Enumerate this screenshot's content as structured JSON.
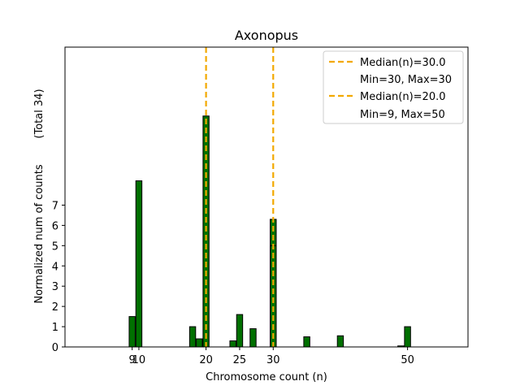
{
  "chart_data": {
    "type": "bar",
    "title": "Axonopus",
    "xlabel": "Chromosome count (n)",
    "ylabel": "Normalized num of counts",
    "ylabel_total": "(Total 34)",
    "xlim": [
      -1,
      59
    ],
    "ylim": [
      0,
      14.8
    ],
    "xticks": [
      {
        "value": 9,
        "label": "9"
      },
      {
        "value": 10,
        "label": "10"
      },
      {
        "value": 20,
        "label": "20"
      },
      {
        "value": 25,
        "label": "25"
      },
      {
        "value": 30,
        "label": "30"
      },
      {
        "value": 50,
        "label": "50"
      }
    ],
    "yticks": [
      0,
      1,
      2,
      3,
      4,
      5,
      6,
      7
    ],
    "bar_width": 0.9,
    "bar_color": "#007000",
    "bars": [
      {
        "x": 9,
        "value": 1.5
      },
      {
        "x": 10,
        "value": 8.2
      },
      {
        "x": 18,
        "value": 1.0
      },
      {
        "x": 19,
        "value": 0.4
      },
      {
        "x": 20,
        "value": 11.4
      },
      {
        "x": 24,
        "value": 0.3
      },
      {
        "x": 25,
        "value": 1.6
      },
      {
        "x": 27,
        "value": 0.9
      },
      {
        "x": 30,
        "value": 6.3
      },
      {
        "x": 30,
        "value": 5.0
      },
      {
        "x": 35,
        "value": 0.5
      },
      {
        "x": 40,
        "value": 0.55
      },
      {
        "x": 49,
        "value": 0.05
      },
      {
        "x": 50,
        "value": 1.0
      }
    ],
    "medians": [
      {
        "x": 30,
        "color": "#f2a900"
      },
      {
        "x": 20,
        "color": "#f2a900"
      }
    ],
    "legend": {
      "position": "top-right",
      "entries": [
        {
          "line1": "Median(n)=30.0",
          "line2": "Min=30, Max=30"
        },
        {
          "line1": "Median(n)=20.0",
          "line2": "Min=9, Max=50"
        }
      ]
    }
  }
}
